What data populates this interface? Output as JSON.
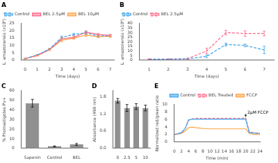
{
  "chart_data": [
    {
      "type": "line",
      "title": "A",
      "x": [
        0,
        1,
        2,
        3,
        4,
        5,
        6,
        7
      ],
      "series": [
        {
          "name": "Control",
          "values": [
            1,
            3.5,
            7.5,
            15.5,
            17.5,
            18.5,
            16.5,
            16.5
          ],
          "errors": [
            0.2,
            0.3,
            0.5,
            0.8,
            0.7,
            0.9,
            0.6,
            0.6
          ],
          "line_style": "dashed"
        },
        {
          "name": "BEL 2.5μM",
          "values": [
            1,
            3.2,
            7.2,
            14.5,
            15.5,
            19.0,
            17.5,
            16.8
          ],
          "errors": [
            0.2,
            0.3,
            0.5,
            0.8,
            0.8,
            1.0,
            0.7,
            0.7
          ],
          "line_style": "solid"
        },
        {
          "name": "BEL 10μM",
          "values": [
            1,
            3.0,
            7.0,
            13.5,
            15.0,
            17.0,
            16.0,
            16.2
          ],
          "errors": [
            0.2,
            0.3,
            0.5,
            1.0,
            0.8,
            0.9,
            0.8,
            0.7
          ],
          "line_style": "solid"
        }
      ],
      "xlabel": "Time (days)",
      "ylabel": "L. amazonensis (x10⁶)",
      "xlim": [
        -0.3,
        7.3
      ],
      "xticks": [
        0,
        1,
        2,
        3,
        4,
        5,
        6,
        7
      ],
      "ylim": [
        0,
        25
      ],
      "yticks": [
        0,
        5,
        10,
        15,
        20,
        25
      ],
      "grid": false,
      "legend": "upper left"
    },
    {
      "type": "line",
      "title": "B",
      "x": [
        1,
        2,
        3,
        4,
        5,
        6,
        7
      ],
      "series": [
        {
          "name": "Control",
          "values": [
            1,
            1,
            1.5,
            4,
            17,
            16,
            11
          ],
          "errors": [
            0.2,
            0.2,
            0.3,
            1.5,
            1.5,
            1.5,
            4.0
          ],
          "line_style": "dashed"
        },
        {
          "name": "BEL 2.5μM",
          "values": [
            1,
            1,
            1.5,
            10,
            30,
            29,
            29
          ],
          "errors": [
            0.2,
            0.2,
            0.5,
            3.0,
            2.5,
            3.0,
            2.5
          ],
          "line_style": "dashed"
        }
      ],
      "xlabel": "Time (days)",
      "ylabel": "L. amazonensis (x10⁶)",
      "xlim": [
        0.5,
        7.5
      ],
      "xticks": [
        1,
        2,
        3,
        4,
        5,
        6,
        7
      ],
      "ylim": [
        0,
        40
      ],
      "yticks": [
        0,
        5,
        10,
        15,
        20,
        25,
        30,
        35,
        40
      ],
      "grid": false,
      "legend": "upper left"
    },
    {
      "type": "bar",
      "title": "C",
      "categories": [
        "Saponin",
        "Control",
        "BEL"
      ],
      "values": [
        47,
        2,
        4
      ],
      "errors": [
        4.0,
        0.5,
        1.0
      ],
      "color": "#909090",
      "ylabel": "% Promastigotes Pv+",
      "ylim": [
        0,
        60
      ],
      "yticks": [
        0,
        10,
        20,
        30,
        40,
        50,
        60
      ],
      "grid": false
    },
    {
      "type": "bar",
      "title": "D",
      "categories": [
        "0",
        "2.5",
        "5",
        "10"
      ],
      "values": [
        1.65,
        1.4,
        1.45,
        1.4
      ],
      "errors": [
        0.08,
        0.12,
        0.1,
        0.1
      ],
      "color": "#909090",
      "ylabel": "Absorbance (490 nm)",
      "ylim": [
        0.0,
        2.0
      ],
      "yticks": [
        {
          "value": 0.0,
          "label": "0.0"
        },
        0.6,
        1.2,
        1.8
      ],
      "grid": false
    },
    {
      "type": "line",
      "title": "E",
      "x": [
        0,
        1,
        2,
        3,
        4,
        5,
        6,
        7,
        8,
        9,
        10,
        11,
        12,
        13,
        14,
        15,
        16,
        17,
        18,
        19,
        20,
        21,
        22,
        23,
        24
      ],
      "series": [
        {
          "name": "Control",
          "values": [
            2,
            2.2,
            2.5,
            3.5,
            5.9,
            6.1,
            6.1,
            6.1,
            6.1,
            6.1,
            6.1,
            6.1,
            6.1,
            6.1,
            6.1,
            6.1,
            6.1,
            6.1,
            6.1,
            6.1,
            6.1,
            2.5,
            2.4,
            2.3,
            2.3
          ],
          "line_style": "solid"
        },
        {
          "name": "BEL Treated",
          "values": [
            2,
            2.2,
            2.5,
            3.5,
            5.8,
            6.2,
            6.3,
            6.3,
            6.3,
            6.3,
            6.3,
            6.3,
            6.3,
            6.3,
            6.3,
            6.3,
            6.3,
            6.3,
            6.3,
            6.3,
            6.5,
            2.7,
            2.5,
            2.4,
            2.4
          ],
          "line_style": "dashed"
        },
        {
          "name": "FCCP",
          "values": [
            2,
            2.1,
            2.3,
            2.9,
            3.8,
            4.0,
            3.8,
            3.7,
            3.6,
            3.6,
            3.5,
            3.5,
            3.5,
            3.5,
            3.5,
            3.5,
            3.5,
            3.5,
            3.5,
            3.5,
            3.5,
            2.3,
            2.1,
            2.0,
            2.0
          ],
          "line_style": "solid"
        }
      ],
      "xlabel": "Time (min)",
      "ylabel": "Normalized red/green ratio",
      "xlim": [
        0,
        24
      ],
      "xticks": [
        0,
        2,
        4,
        6,
        8,
        10,
        12,
        14,
        16,
        18,
        20,
        22,
        24
      ],
      "ylim": [
        0,
        10
      ],
      "yticks": [
        0,
        2,
        4,
        6,
        8,
        10
      ],
      "annotations": [
        {
          "text": "2μM FCCP",
          "x": 20.5,
          "y": 7.8,
          "arrow": {
            "from": [
              20,
              7.5
            ],
            "to": [
              20,
              6.8
            ]
          }
        }
      ],
      "grid": false,
      "legend": "upper right"
    }
  ]
}
